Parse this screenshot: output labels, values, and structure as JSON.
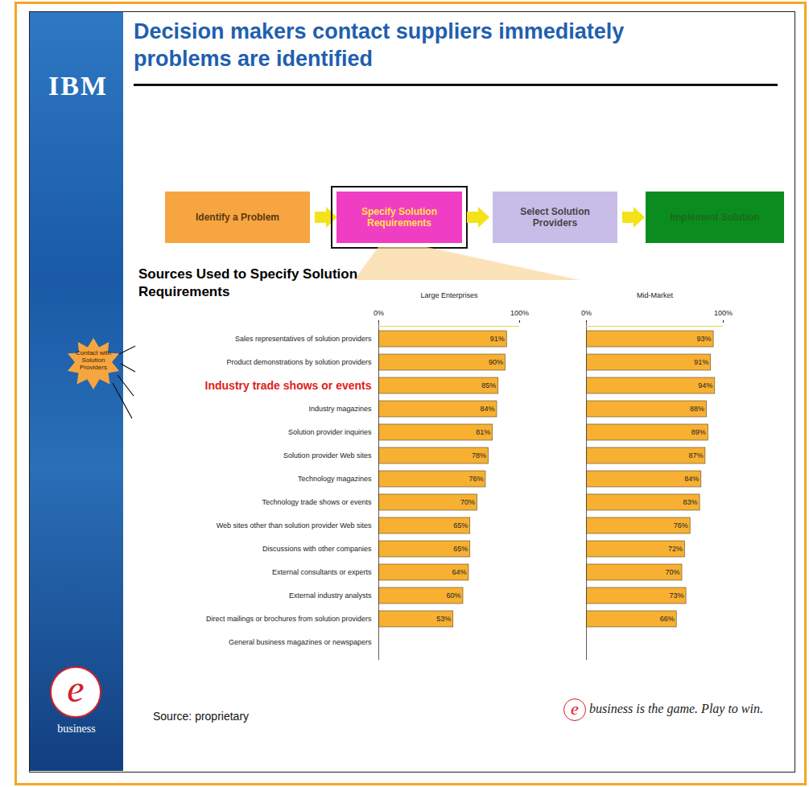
{
  "slide": {
    "logo": "IBM",
    "title": "Decision makers contact suppliers immediately problems are identified",
    "process": [
      "Identify a Problem",
      "Specify Solution Requirements",
      "Select Solution Providers",
      "Implement Solution"
    ],
    "heading": "Sources Used to Specify Solution Requirements",
    "callout": "Contact with Solution Providers",
    "source": "Source: proprietary",
    "mark": "e",
    "brand": "business",
    "tagline": "business is the game. Play to win."
  },
  "chart_data": [
    {
      "type": "bar",
      "title": "Large Enterprises",
      "orientation": "horizontal",
      "color": "#f7b032",
      "categories": [
        "Sales representatives of solution providers",
        "Product demonstrations by solution providers",
        null,
        "Industry magazines",
        "Solution provider inquiries",
        "Solution provider Web sites",
        "Technology magazines",
        "Technology trade shows or events",
        "Web sites other than solution provider Web sites",
        "Discussions with other companies",
        "External consultants or experts",
        "External industry analysts",
        "Direct mailings or brochures from solution providers",
        "General business magazines or newspapers"
      ],
      "values": [
        91,
        90,
        85,
        84,
        81,
        78,
        76,
        70,
        65,
        65,
        64,
        60,
        53,
        null
      ],
      "value_labels": [
        "91%",
        "90%",
        "85%",
        "84%",
        "81%",
        "78%",
        "76%",
        "70%",
        "65%",
        "65%",
        "64%",
        "60%",
        "53%",
        null
      ],
      "annotation": "Industry trade shows or events",
      "xlim": [
        0,
        100
      ],
      "xticks": [
        {
          "value": 0,
          "label": "0%"
        },
        {
          "value": 100,
          "label": "100%"
        }
      ],
      "data_labels": true
    },
    {
      "type": "bar",
      "title": "Mid-Market",
      "orientation": "horizontal",
      "color": "#f7b032",
      "categories": [
        null,
        null,
        null,
        null,
        null,
        null,
        null,
        null,
        null,
        null,
        null,
        null,
        null,
        null
      ],
      "values": [
        93,
        91,
        94,
        88,
        89,
        87,
        84,
        83,
        76,
        72,
        70,
        73,
        66,
        null
      ],
      "value_labels": [
        "93%",
        "91%",
        "94%",
        "88%",
        "89%",
        "87%",
        "84%",
        "83%",
        "76%",
        "72%",
        "70%",
        "73%",
        "66%",
        null
      ],
      "xlim": [
        0,
        100
      ],
      "xticks": [
        {
          "value": 0,
          "label": "0%"
        },
        {
          "value": 100,
          "label": "100%"
        }
      ],
      "data_labels": true,
      "tick_labels": "x"
    }
  ]
}
